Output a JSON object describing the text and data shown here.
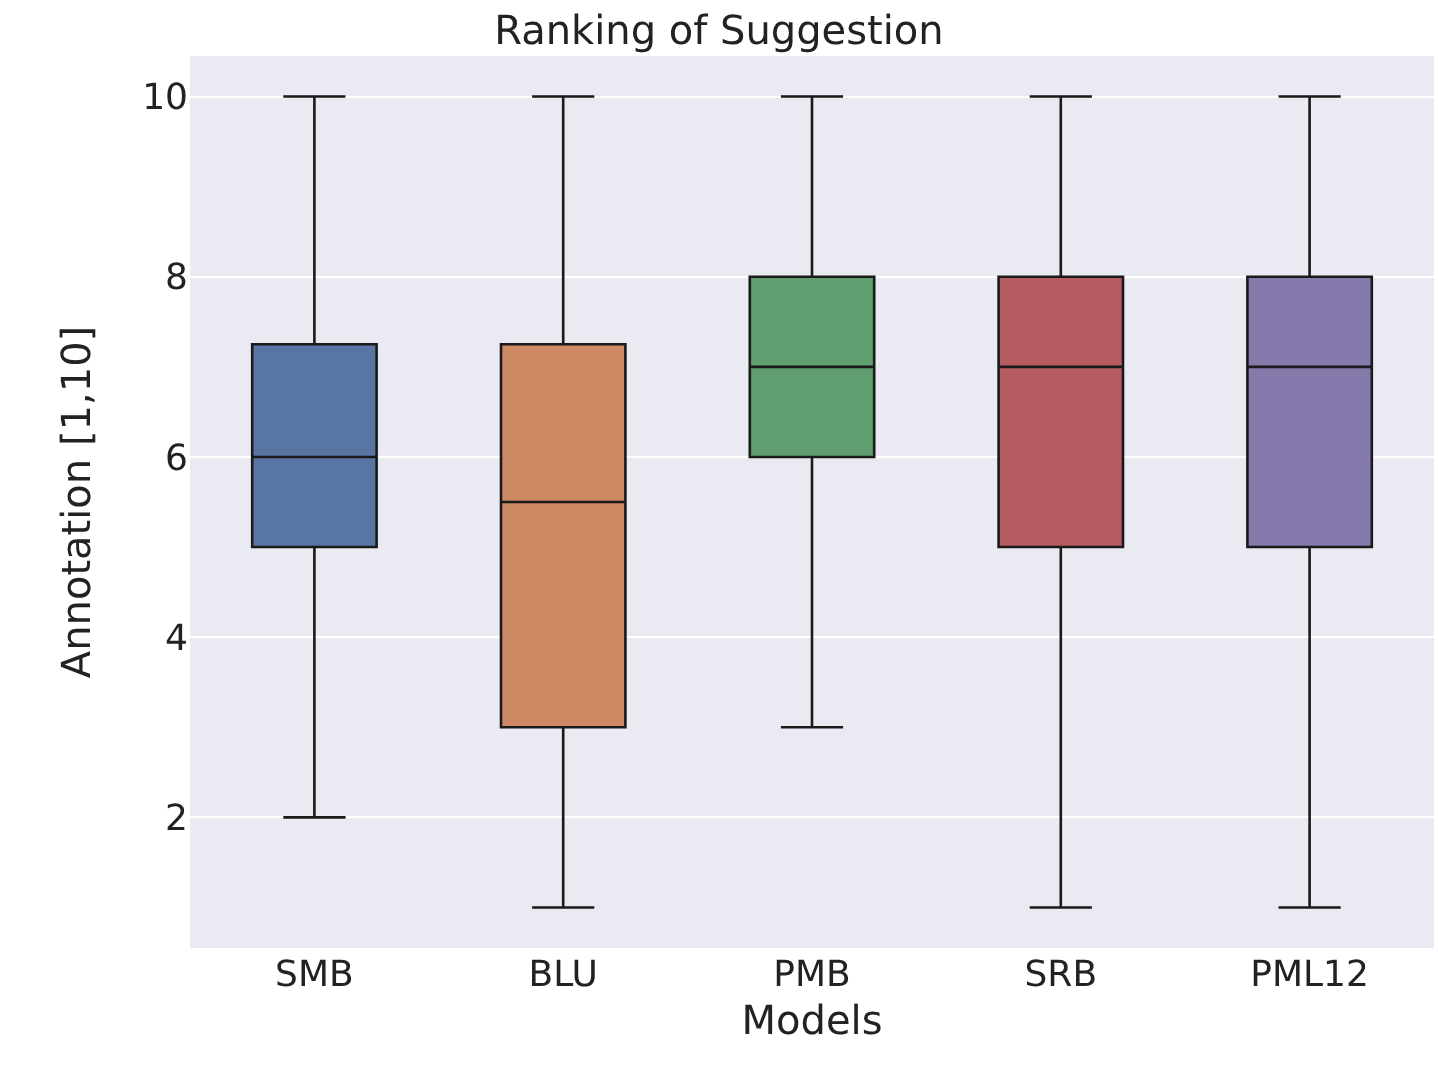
{
  "chart_data": {
    "type": "box",
    "title": "Ranking of Suggestion",
    "xlabel": "Models",
    "ylabel": "Annotation [1,10]",
    "categories": [
      "SMB",
      "BLU",
      "PMB",
      "SRB",
      "PML12"
    ],
    "colors": [
      "#5975a4",
      "#cc8963",
      "#5f9e6e",
      "#b55d60",
      "#857aab"
    ],
    "boxes": [
      {
        "low": 2,
        "q1": 5,
        "median": 6,
        "q3": 7.25,
        "high": 10
      },
      {
        "low": 1,
        "q1": 3,
        "median": 5.5,
        "q3": 7.25,
        "high": 10
      },
      {
        "low": 3,
        "q1": 6,
        "median": 7,
        "q3": 8,
        "high": 10
      },
      {
        "low": 1,
        "q1": 5,
        "median": 7,
        "q3": 8,
        "high": 10
      },
      {
        "low": 1,
        "q1": 5,
        "median": 7,
        "q3": 8,
        "high": 10
      }
    ],
    "ylim": [
      0.55,
      10.45
    ],
    "yticks": [
      2,
      4,
      6,
      8,
      10
    ],
    "grid": "y",
    "legend": false
  }
}
